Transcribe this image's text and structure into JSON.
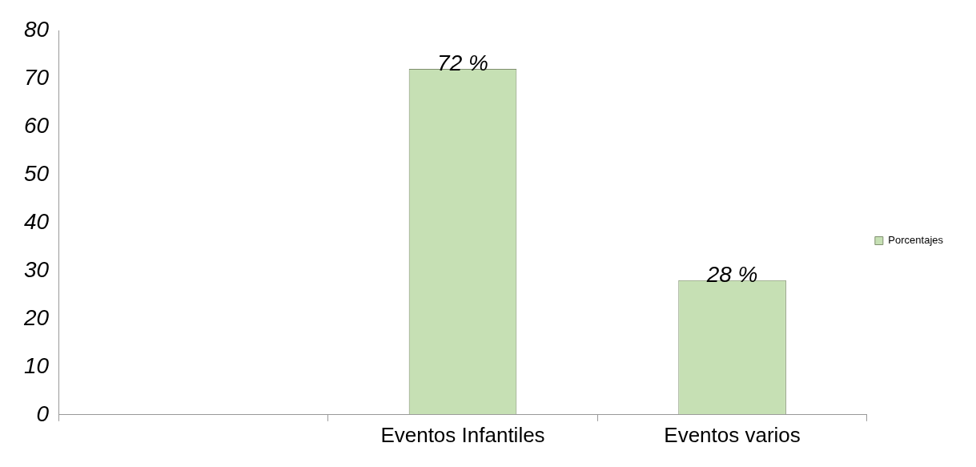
{
  "chart_data": {
    "type": "bar",
    "categories": [
      null,
      "Eventos Infantiles",
      "Eventos varios"
    ],
    "series": [
      {
        "name": "Porcentajes",
        "color": "#c6e0b4",
        "values": [
          null,
          72,
          28
        ],
        "value_labels": [
          null,
          "72 %",
          "28 %"
        ]
      }
    ],
    "ylim": [
      0,
      80
    ],
    "yticks": [
      0,
      10,
      20,
      30,
      40,
      50,
      60,
      70,
      80
    ],
    "grid": false,
    "legend": "right"
  }
}
